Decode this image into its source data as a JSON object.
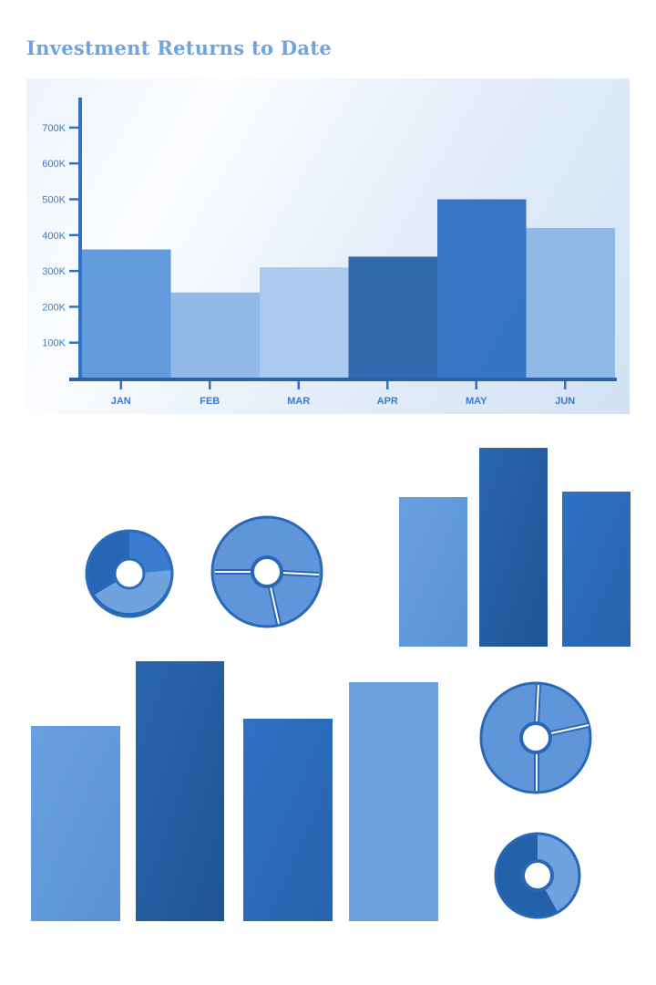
{
  "chart_data": {
    "type": "bar",
    "title": "Investment Returns to Date",
    "xlabel": "",
    "ylabel": "",
    "categories": [
      "JAN",
      "FEB",
      "MAR",
      "APR",
      "MAY",
      "JUN"
    ],
    "values": [
      360000,
      240000,
      310000,
      340000,
      500000,
      420000
    ],
    "y_ticks": [
      "100K",
      "200K",
      "300K",
      "400K",
      "500K",
      "600K",
      "700K"
    ],
    "ylim": [
      0,
      780000
    ],
    "grid": false,
    "bar_colors": [
      "#5b95d9",
      "#8db5e6",
      "#a9c7ec",
      "#2762a8",
      "#2b6fc0",
      "#8bb5e5"
    ],
    "axis_color": "#2f72c6",
    "label_color": "#3a7bd0"
  }
}
